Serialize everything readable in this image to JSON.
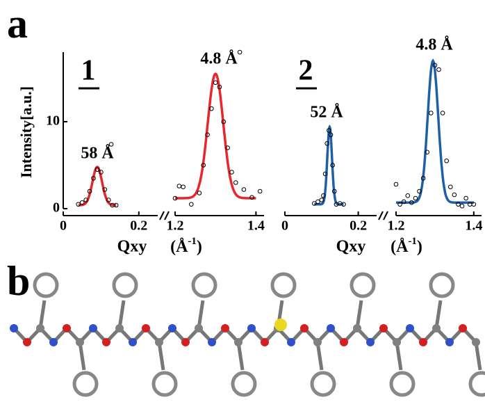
{
  "panel_a": "a",
  "panel_b": "b",
  "chart_data": [
    {
      "type": "scatter",
      "label": "1",
      "ylabel": "Intensity[a.u.]",
      "xlabel": "Qxy",
      "xlabel_unit": "(Å",
      "xlabel_unit_sup": "-1",
      "xlabel_unit_end": ")",
      "ylim": [
        0,
        18
      ],
      "yticks": [
        0,
        10
      ],
      "color": "#e8262b",
      "segments": [
        {
          "xlim": [
            0,
            0.25
          ],
          "xticks": [
            0,
            0.2
          ],
          "peak_label": "58 Å",
          "x": [
            0.04,
            0.05,
            0.06,
            0.07,
            0.08,
            0.09,
            0.1,
            0.11,
            0.12,
            0.127,
            0.13,
            0.14
          ],
          "y": [
            0.5,
            0.7,
            1.0,
            2.0,
            3.5,
            4.5,
            4.2,
            2.2,
            1.0,
            7.4,
            0.4,
            0.4
          ],
          "fit": {
            "center": 0.09,
            "fwhm": 0.03,
            "height": 4.4,
            "baseline": 0.4,
            "x_from": 0.04,
            "x_to": 0.14
          }
        },
        {
          "xlim": [
            1.2,
            1.42
          ],
          "xticks": [
            1.2,
            1.4
          ],
          "peak_label": "4.8 Å",
          "x": [
            1.2,
            1.21,
            1.22,
            1.24,
            1.26,
            1.27,
            1.28,
            1.29,
            1.3,
            1.31,
            1.32,
            1.33,
            1.34,
            1.35,
            1.36,
            1.37,
            1.39,
            1.41
          ],
          "y": [
            1.2,
            2.6,
            2.5,
            0.5,
            1.8,
            5,
            8.5,
            11.5,
            14.5,
            14,
            10,
            7,
            4.2,
            3,
            18,
            2.2,
            1.3,
            2.0
          ],
          "fit": {
            "center": 1.3,
            "fwhm": 0.045,
            "height": 14.3,
            "baseline": 1.2,
            "x_from": 1.2,
            "x_to": 1.4
          }
        }
      ]
    },
    {
      "type": "scatter",
      "label": "2",
      "xlabel": "Qxy",
      "xlabel_unit": "(Å",
      "xlabel_unit_sup": "-1",
      "xlabel_unit_end": ")",
      "ylim": [
        0,
        18
      ],
      "color": "#1f5fa8",
      "segments": [
        {
          "xlim": [
            0,
            0.25
          ],
          "xticks": [
            0,
            0.2
          ],
          "peak_label": "52 Å",
          "x": [
            0.08,
            0.09,
            0.1,
            0.105,
            0.11,
            0.115,
            0.12,
            0.125,
            0.13,
            0.135,
            0.14,
            0.15,
            0.16
          ],
          "y": [
            0.6,
            0.8,
            1.0,
            1.5,
            4.0,
            7.5,
            9.0,
            8.5,
            5.0,
            2.0,
            0.5,
            0.6,
            0.5
          ],
          "fit": {
            "center": 0.122,
            "fwhm": 0.015,
            "height": 8.9,
            "baseline": 0.5,
            "x_from": 0.08,
            "x_to": 0.16
          }
        },
        {
          "xlim": [
            1.2,
            1.42
          ],
          "xticks": [
            1.2,
            1.4
          ],
          "peak_label": "4.8 Å",
          "x": [
            1.2,
            1.21,
            1.22,
            1.23,
            1.24,
            1.25,
            1.26,
            1.27,
            1.28,
            1.29,
            1.3,
            1.31,
            1.32,
            1.33,
            1.34,
            1.35,
            1.36,
            1.37,
            1.38,
            1.39,
            1.4
          ],
          "y": [
            2.8,
            0.5,
            0.8,
            1.5,
            0.7,
            1.2,
            2.0,
            3.5,
            6.5,
            11,
            16.5,
            16,
            11,
            5.5,
            2.5,
            1.6,
            0.5,
            0.3,
            1.2,
            0.5,
            0.5
          ],
          "fit": {
            "center": 1.295,
            "fwhm": 0.032,
            "height": 16.3,
            "baseline": 0.7,
            "x_from": 1.2,
            "x_to": 1.4
          }
        }
      ]
    }
  ]
}
